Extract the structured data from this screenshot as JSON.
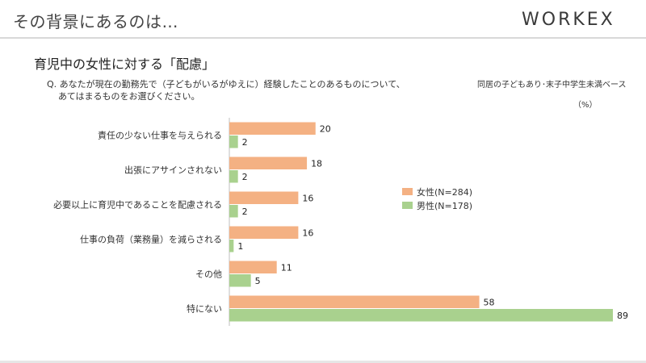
{
  "header": {
    "title": "その背景にあるのは…",
    "logo_text": "WORKEX"
  },
  "slide": {
    "title": "育児中の女性に対する「配慮」",
    "question_line1": "Q. あなたが現在の勤務先で（子どもがいるがゆえに）経験したことのあるものについて、",
    "question_line2": "あてはまるものをお選びください。",
    "base_note": "同居の子どもあり･末子中学生未満ベース",
    "unit_note": "（%）"
  },
  "chart_data": {
    "type": "bar",
    "orientation": "horizontal",
    "categories": [
      "責任の少ない仕事を与えられる",
      "出張にアサインされない",
      "必要以上に育児中であることを配慮される",
      "仕事の負荷（業務量）を減らされる",
      "その他",
      "特にない"
    ],
    "series": [
      {
        "name": "女性(N=284)",
        "color": "#f4b183",
        "values": [
          20,
          18,
          16,
          16,
          11,
          58
        ]
      },
      {
        "name": "男性(N=178)",
        "color": "#a9d18e",
        "values": [
          2,
          2,
          2,
          1,
          5,
          89
        ]
      }
    ],
    "xlim": [
      0,
      90
    ],
    "legend_position": "right",
    "grid": false
  }
}
